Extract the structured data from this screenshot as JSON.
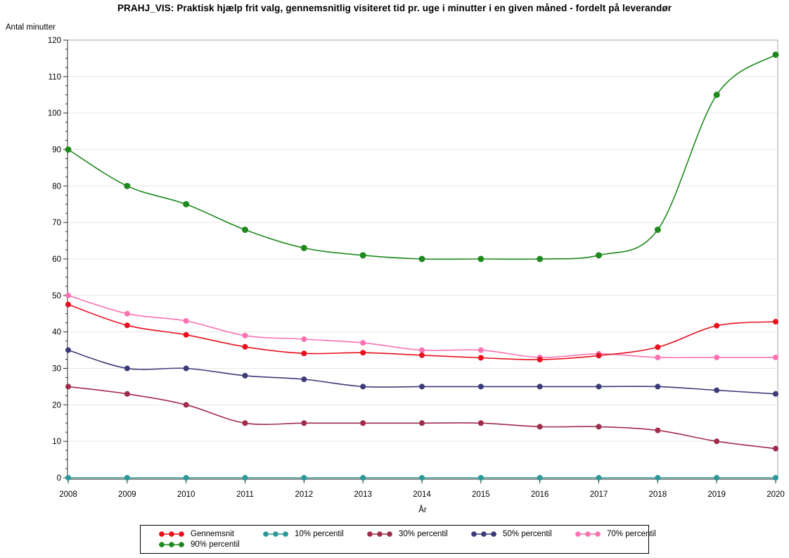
{
  "chart_data": {
    "type": "line",
    "title": "PRAHJ_VIS: Praktisk hjælp frit valg, gennemsnitlig visiteret tid pr. uge i minutter i en given måned - fordelt på leverandør",
    "xlabel": "År",
    "ylabel": "Antal minutter",
    "x": [
      2008,
      2009,
      2010,
      2011,
      2012,
      2013,
      2014,
      2015,
      2016,
      2017,
      2018,
      2019,
      2020
    ],
    "ylim": [
      0,
      120
    ],
    "y_ticks": [
      0,
      10,
      20,
      30,
      40,
      50,
      60,
      70,
      80,
      90,
      100,
      110,
      120
    ],
    "grid": true,
    "legend_position": "bottom",
    "marker": "filled-circle",
    "line_style": "smooth",
    "series": [
      {
        "name": "Gennemsnit",
        "color": "#e8101e",
        "values": [
          47.5,
          41.8,
          39.2,
          35.9,
          34.1,
          34.3,
          33.6,
          32.9,
          32.4,
          33.5,
          35.8,
          41.7,
          42.8
        ]
      },
      {
        "name": "10% percentil",
        "color": "#2e9898",
        "values": [
          0,
          0,
          0,
          0,
          0,
          0,
          0,
          0,
          0,
          0,
          0,
          0,
          0
        ]
      },
      {
        "name": "30% percentil",
        "color": "#a02c4c",
        "values": [
          25,
          23,
          20,
          15,
          15,
          15,
          15,
          15,
          14,
          14,
          13,
          10,
          8
        ]
      },
      {
        "name": "50% percentil",
        "color": "#3b3b78",
        "values": [
          35,
          30,
          30,
          28,
          27,
          25,
          25,
          25,
          25,
          25,
          25,
          24,
          23
        ]
      },
      {
        "name": "70% percentil",
        "color": "#f973b2",
        "values": [
          50,
          45,
          43,
          39,
          38,
          37,
          35,
          35,
          33,
          34,
          33,
          33,
          33
        ]
      },
      {
        "name": "90% percentil",
        "color": "#1e8a1e",
        "values": [
          90,
          80,
          75,
          68,
          63,
          61,
          60,
          60,
          60,
          61,
          68,
          105,
          116
        ]
      }
    ],
    "frame_color": "#a6a6a6",
    "axis_color": "#2b2b2b",
    "gridline_color": "#e7e7e7"
  }
}
